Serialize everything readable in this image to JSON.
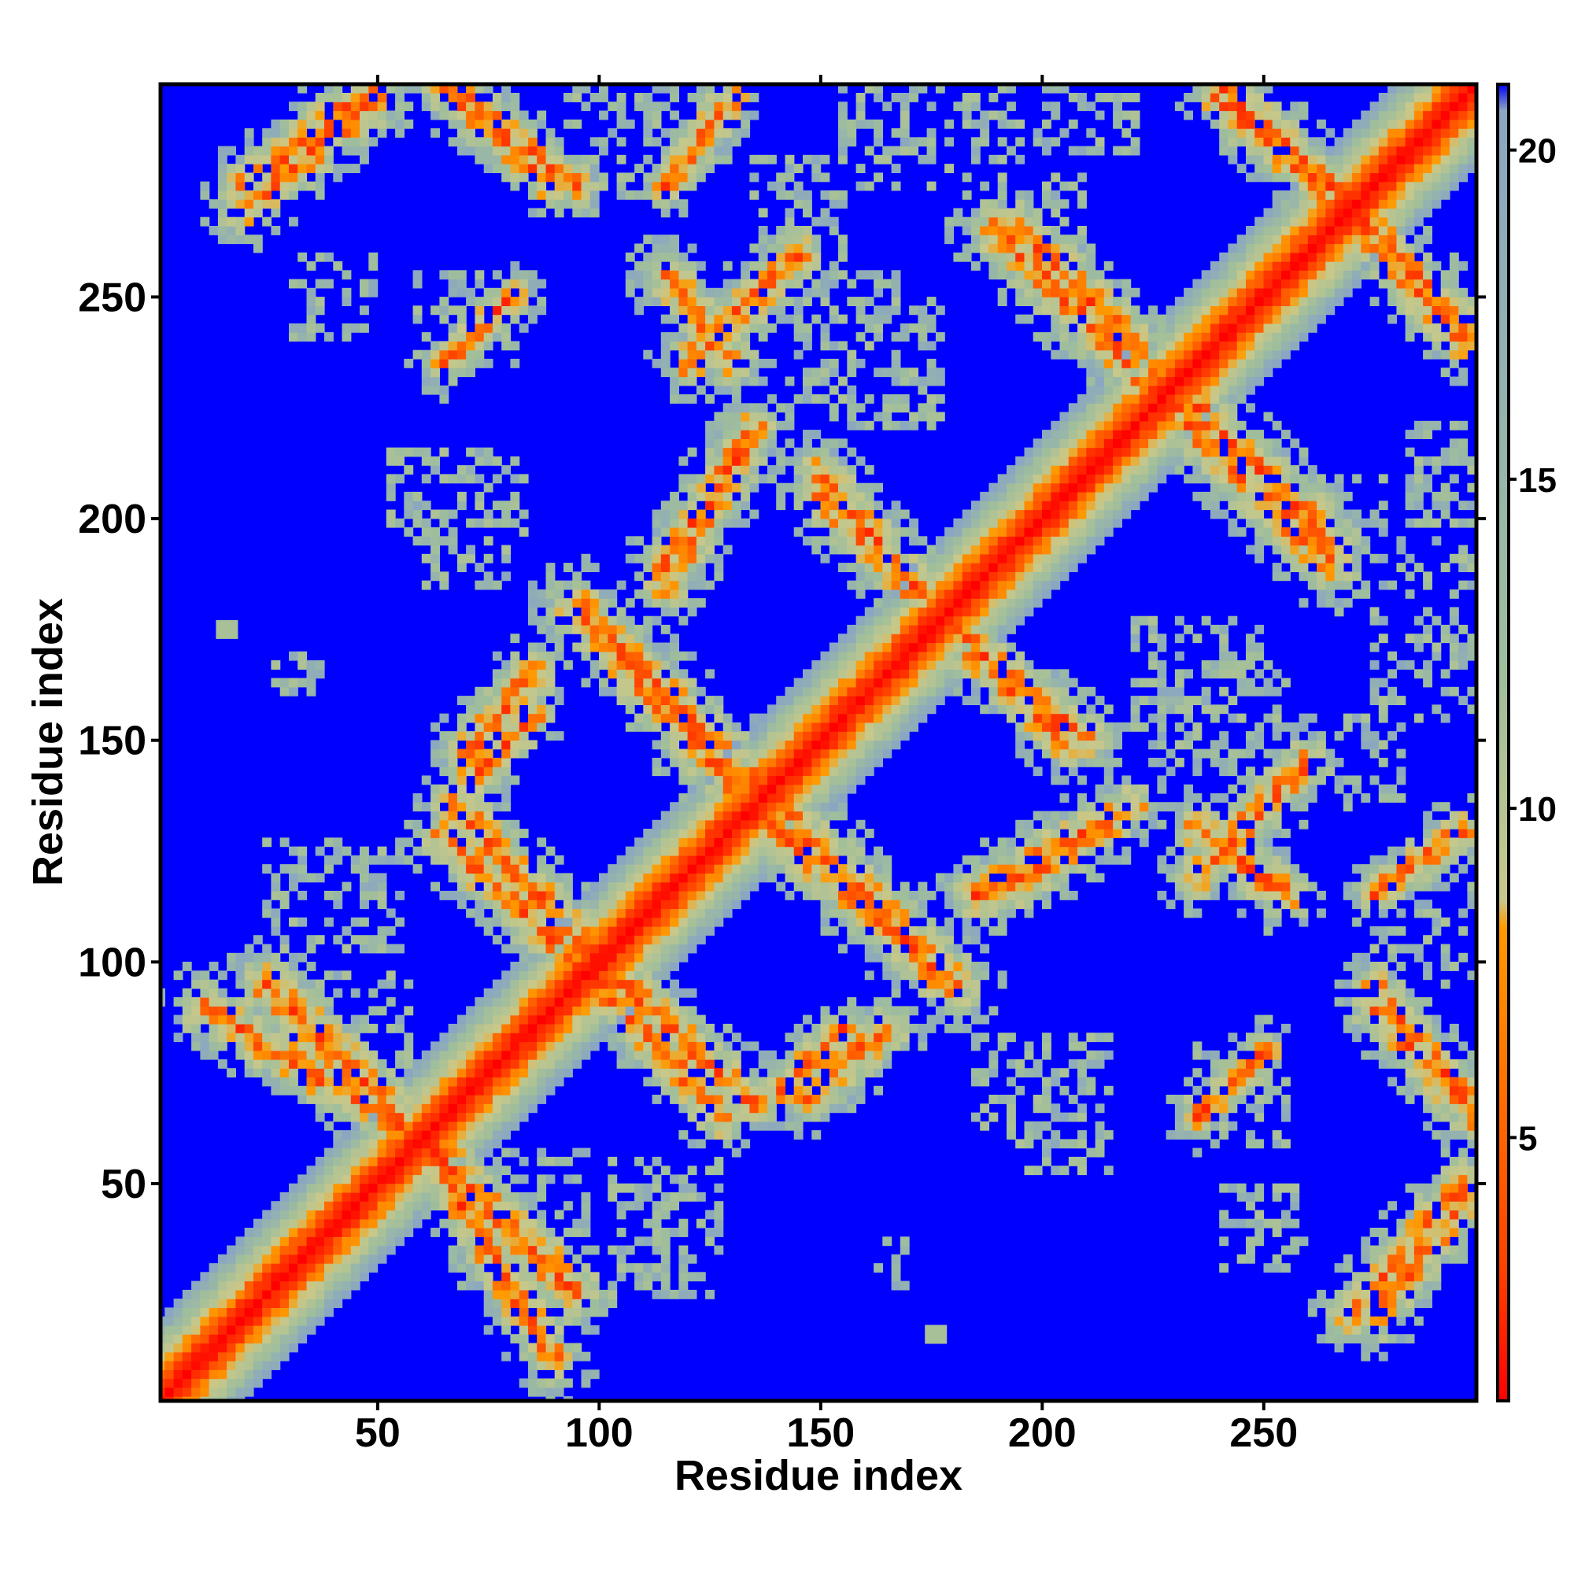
{
  "chart_data": {
    "type": "heatmap",
    "title": "",
    "xlabel": "Residue index",
    "ylabel": "Residue index",
    "xlim": [
      1,
      298
    ],
    "ylim": [
      1,
      298
    ],
    "x_ticks": [
      50,
      100,
      150,
      200,
      250
    ],
    "y_ticks": [
      50,
      100,
      150,
      200,
      250
    ],
    "x_tick_labels": [
      "50",
      "100",
      "150",
      "200",
      "250"
    ],
    "y_tick_labels": [
      "50",
      "100",
      "150",
      "200",
      "250"
    ],
    "symmetric": true,
    "colorbar": {
      "range": [
        1,
        21
      ],
      "ticks": [
        5,
        10,
        15,
        20
      ],
      "tick_labels": [
        "5",
        "10",
        "15",
        "20"
      ],
      "colors": [
        "#ff0000",
        "#ff4000",
        "#ff9a00",
        "#c8c88a",
        "#9fbe9c",
        "#8aa6c2",
        "#0000ff"
      ],
      "stops": [
        0,
        0.1,
        0.36,
        0.38,
        0.55,
        0.98,
        1
      ]
    },
    "background_color": "#0000ff",
    "diagonal_color": "#ff0000",
    "contact_bands": [
      {
        "x1": 60,
        "y1": 60,
        "x2": 95,
        "y2": 25,
        "width": 7
      },
      {
        "x1": 10,
        "y1": 90,
        "x2": 60,
        "y2": 60,
        "width": 6
      },
      {
        "x1": 100,
        "y1": 100,
        "x2": 135,
        "y2": 68,
        "width": 6
      },
      {
        "x1": 65,
        "y1": 128,
        "x2": 95,
        "y2": 100,
        "width": 6
      },
      {
        "x1": 70,
        "y1": 147,
        "x2": 85,
        "y2": 165,
        "width": 6
      },
      {
        "x1": 135,
        "y1": 135,
        "x2": 180,
        "y2": 95,
        "width": 7
      },
      {
        "x1": 95,
        "y1": 180,
        "x2": 135,
        "y2": 140,
        "width": 7
      },
      {
        "x1": 115,
        "y1": 190,
        "x2": 135,
        "y2": 220,
        "width": 6
      },
      {
        "x1": 120,
        "y1": 235,
        "x2": 145,
        "y2": 260,
        "width": 6
      },
      {
        "x1": 150,
        "y1": 205,
        "x2": 175,
        "y2": 180,
        "width": 6
      },
      {
        "x1": 180,
        "y1": 175,
        "x2": 210,
        "y2": 150,
        "width": 6
      },
      {
        "x1": 185,
        "y1": 115,
        "x2": 220,
        "y2": 135,
        "width": 6
      },
      {
        "x1": 235,
        "y1": 130,
        "x2": 255,
        "y2": 115,
        "width": 6
      },
      {
        "x1": 230,
        "y1": 225,
        "x2": 265,
        "y2": 190,
        "width": 7
      },
      {
        "x1": 195,
        "y1": 265,
        "x2": 225,
        "y2": 235,
        "width": 7
      },
      {
        "x1": 240,
        "y1": 298,
        "x2": 270,
        "y2": 270,
        "width": 6
      },
      {
        "x1": 270,
        "y1": 268,
        "x2": 295,
        "y2": 240,
        "width": 6
      },
      {
        "x1": 20,
        "y1": 275,
        "x2": 50,
        "y2": 298,
        "width": 6
      },
      {
        "x1": 65,
        "y1": 298,
        "x2": 90,
        "y2": 275,
        "width": 6
      },
      {
        "x1": 270,
        "y1": 20,
        "x2": 295,
        "y2": 50,
        "width": 6
      },
      {
        "x1": 275,
        "y1": 95,
        "x2": 295,
        "y2": 70,
        "width": 5
      },
      {
        "x1": 275,
        "y1": 115,
        "x2": 295,
        "y2": 130,
        "width": 5
      },
      {
        "x1": 140,
        "y1": 70,
        "x2": 155,
        "y2": 85,
        "width": 5
      },
      {
        "x1": 235,
        "y1": 65,
        "x2": 250,
        "y2": 80,
        "width": 5
      }
    ],
    "contact_patches": [
      {
        "x": 85,
        "y": 45,
        "w": 25,
        "h": 25
      },
      {
        "x": 70,
        "y": 245,
        "w": 25,
        "h": 20
      },
      {
        "x": 40,
        "y": 250,
        "w": 20,
        "h": 20
      },
      {
        "x": 105,
        "y": 285,
        "w": 25,
        "h": 25
      },
      {
        "x": 145,
        "y": 270,
        "w": 20,
        "h": 25
      },
      {
        "x": 170,
        "y": 285,
        "w": 30,
        "h": 20
      },
      {
        "x": 210,
        "y": 290,
        "w": 25,
        "h": 15
      },
      {
        "x": 165,
        "y": 235,
        "w": 25,
        "h": 30
      },
      {
        "x": 200,
        "y": 72,
        "w": 30,
        "h": 25
      },
      {
        "x": 240,
        "y": 155,
        "w": 30,
        "h": 25
      },
      {
        "x": 290,
        "y": 175,
        "w": 20,
        "h": 40
      },
      {
        "x": 60,
        "y": 205,
        "w": 15,
        "h": 20
      },
      {
        "x": 115,
        "y": 40,
        "w": 25,
        "h": 30
      },
      {
        "x": 165,
        "y": 32,
        "w": 10,
        "h": 10
      },
      {
        "x": 25,
        "y": 97,
        "w": 10,
        "h": 15
      },
      {
        "x": 270,
        "y": 200,
        "w": 15,
        "h": 20
      }
    ],
    "small_spots": [
      {
        "x": 16,
        "y": 175
      },
      {
        "x": 176,
        "y": 16
      }
    ]
  }
}
